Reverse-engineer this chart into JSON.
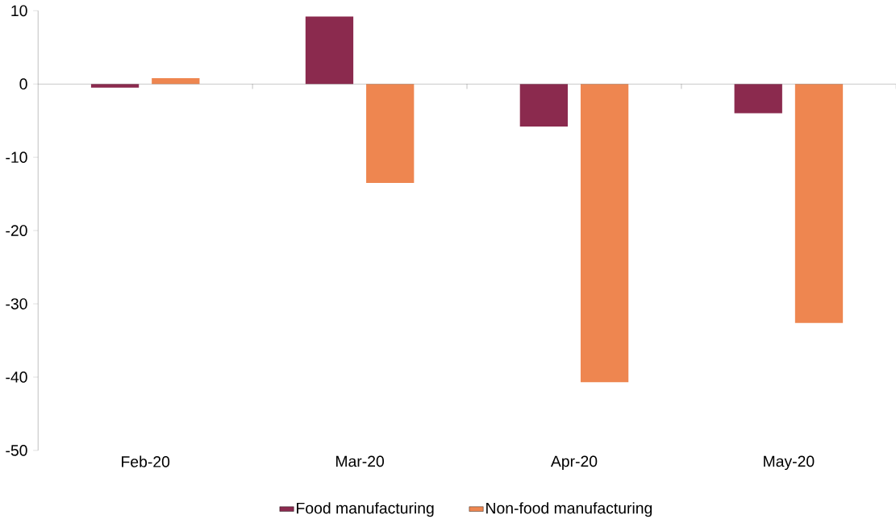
{
  "chart_data": {
    "type": "bar",
    "categories": [
      "Feb-20",
      "Mar-20",
      "Apr-20",
      "May-20"
    ],
    "series": [
      {
        "name": "Food manufacturing",
        "color": "#8b2a4e",
        "values": [
          -0.5,
          9.2,
          -5.8,
          -4.0
        ]
      },
      {
        "name": "Non-food manufacturing",
        "color": "#ee8650",
        "values": [
          0.8,
          -13.5,
          -40.7,
          -32.6
        ]
      }
    ],
    "ylim": [
      -50,
      10
    ],
    "yticks": [
      -50,
      -40,
      -30,
      -20,
      -10,
      0,
      10
    ],
    "legend": "bottom"
  }
}
